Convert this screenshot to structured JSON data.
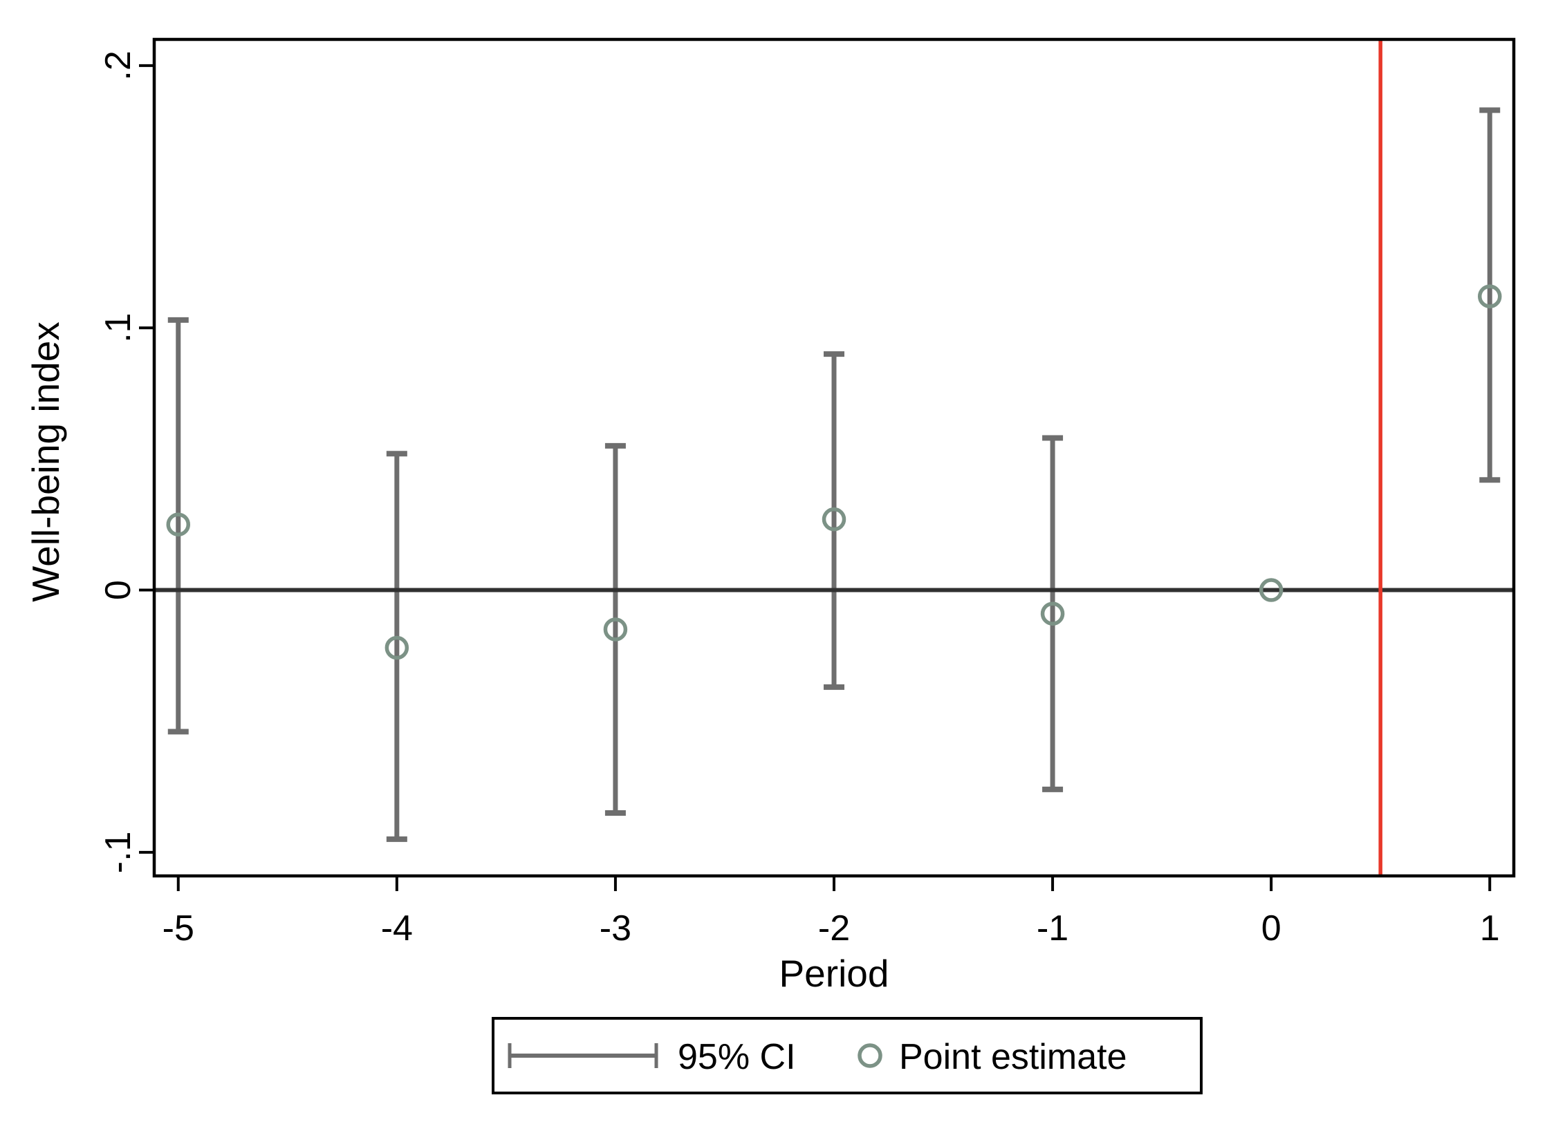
{
  "figure": {
    "background": "#ffffff"
  },
  "chart_data": {
    "type": "scatter",
    "subtype": "event-study-errorbar",
    "title": "",
    "xlabel": "Period",
    "ylabel": "Well-being index",
    "xlim": [
      -5.11,
      1.11
    ],
    "ylim": [
      -0.109,
      0.21
    ],
    "x_ticks": [
      -5,
      -4,
      -3,
      -2,
      -1,
      0,
      1
    ],
    "x_tick_labels": [
      "-5",
      "-4",
      "-3",
      "-2",
      "-1",
      "0",
      "1"
    ],
    "y_ticks": [
      0.2,
      0.1,
      0,
      -0.1
    ],
    "y_tick_labels": [
      ".2",
      ".1",
      "0",
      "-.1"
    ],
    "grid": false,
    "zero_hline_y": 0,
    "reference_vline_x": 0.5,
    "points": [
      {
        "x": -5,
        "estimate": 0.025,
        "ci_low": -0.054,
        "ci_high": 0.103
      },
      {
        "x": -4,
        "estimate": -0.022,
        "ci_low": -0.095,
        "ci_high": 0.052
      },
      {
        "x": -3,
        "estimate": -0.015,
        "ci_low": -0.085,
        "ci_high": 0.055
      },
      {
        "x": -2,
        "estimate": 0.027,
        "ci_low": -0.037,
        "ci_high": 0.09
      },
      {
        "x": -1,
        "estimate": -0.009,
        "ci_low": -0.076,
        "ci_high": 0.058
      },
      {
        "x": 0,
        "estimate": 0.0,
        "ci_low": null,
        "ci_high": null
      },
      {
        "x": 1,
        "estimate": 0.112,
        "ci_low": 0.042,
        "ci_high": 0.183
      }
    ],
    "legend": {
      "position": "bottom-center",
      "entries": [
        {
          "symbol": "error-bar",
          "label": "95% CI"
        },
        {
          "symbol": "circle",
          "label": "Point estimate"
        }
      ]
    },
    "colors": {
      "ci_bar": "#6e6e6e",
      "point_marker": "#7c9286",
      "reference_vline": "#e8392b",
      "zero_line": "#303030",
      "axis": "#000000",
      "background": "#ffffff"
    }
  }
}
